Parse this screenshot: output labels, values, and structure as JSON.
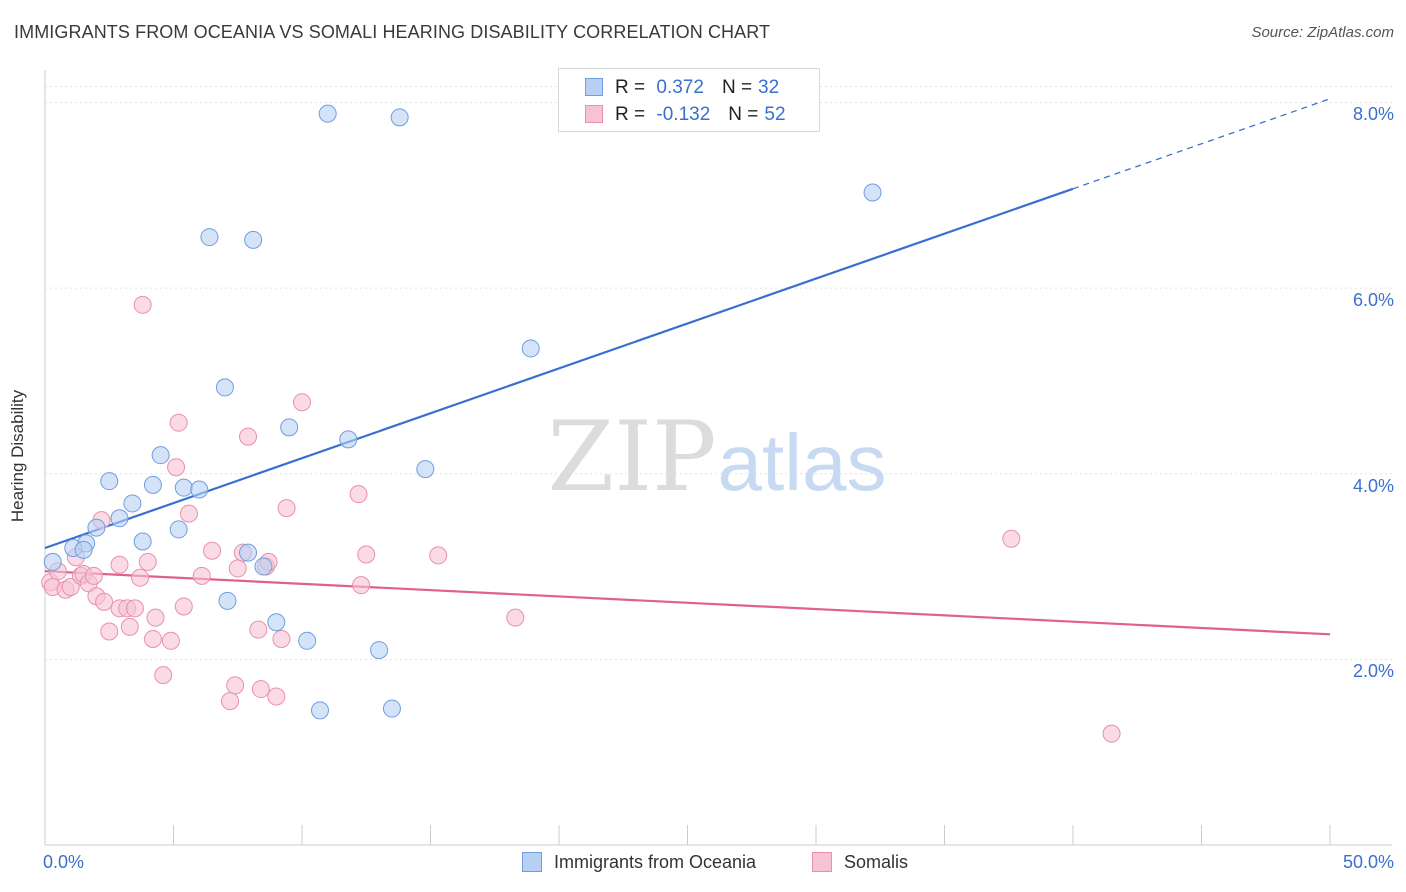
{
  "title": "IMMIGRANTS FROM OCEANIA VS SOMALI HEARING DISABILITY CORRELATION CHART",
  "source": "Source: ZipAtlas.com",
  "watermark": {
    "zip": "ZIP",
    "atlas": "atlas"
  },
  "legend": {
    "r_label": "R =",
    "n_label": "N =",
    "rows": [
      {
        "r": "0.372",
        "n": "32",
        "fill": "#b8d0f3",
        "stroke": "#6f9ee0"
      },
      {
        "r": "-0.132",
        "n": "52",
        "fill": "#f7c3d3",
        "stroke": "#e890ad"
      }
    ]
  },
  "bottom_legend": [
    "Immigrants from Oceania",
    "Somalis"
  ],
  "colors": {
    "blue": "#3a6fd0",
    "pink": "#e06090",
    "blue_fill": "#b8d0f3",
    "pink_fill": "#f7c3d3"
  },
  "chart_data": {
    "type": "scatter",
    "title": "IMMIGRANTS FROM OCEANIA VS SOMALI HEARING DISABILITY CORRELATION CHART",
    "xlabel": "",
    "ylabel": "Hearing Disability",
    "xlim": [
      0,
      50
    ],
    "ylim": [
      0,
      8.35
    ],
    "x_tick_labels": [
      "0.0%",
      "50.0%"
    ],
    "y_ticks": [
      2,
      4,
      6,
      8
    ],
    "y_tick_labels": [
      "2.0%",
      "4.0%",
      "6.0%",
      "8.0%"
    ],
    "grid": true,
    "legend_position": "top-center",
    "series": [
      {
        "name": "Immigrants from Oceania",
        "color": "#3a6fd0",
        "trend": {
          "x0": 0,
          "y0": 3.2,
          "x1": 40,
          "y1": 7.07,
          "dash_to_x": 50,
          "dash_to_y": 8.04
        },
        "points": [
          [
            0.3,
            3.05
          ],
          [
            1.6,
            3.25
          ],
          [
            1.1,
            3.2
          ],
          [
            1.5,
            3.18
          ],
          [
            2.0,
            3.42
          ],
          [
            2.5,
            3.92
          ],
          [
            2.9,
            3.52
          ],
          [
            3.4,
            3.68
          ],
          [
            3.8,
            3.27
          ],
          [
            4.2,
            3.88
          ],
          [
            4.5,
            4.2
          ],
          [
            5.2,
            3.4
          ],
          [
            5.4,
            3.85
          ],
          [
            6.0,
            3.83
          ],
          [
            6.4,
            6.55
          ],
          [
            7.0,
            4.93
          ],
          [
            7.1,
            2.63
          ],
          [
            8.1,
            6.52
          ],
          [
            7.9,
            3.15
          ],
          [
            8.5,
            3.0
          ],
          [
            9.0,
            2.4
          ],
          [
            9.5,
            4.5
          ],
          [
            10.2,
            2.2
          ],
          [
            10.7,
            1.45
          ],
          [
            11.0,
            7.88
          ],
          [
            11.8,
            4.37
          ],
          [
            13.0,
            2.1
          ],
          [
            13.5,
            1.47
          ],
          [
            13.8,
            7.84
          ],
          [
            14.8,
            4.05
          ],
          [
            18.9,
            5.35
          ],
          [
            32.2,
            7.03
          ]
        ]
      },
      {
        "name": "Somalis",
        "color": "#e06090",
        "trend": {
          "x0": 0,
          "y0": 2.95,
          "x1": 50,
          "y1": 2.27
        },
        "points": [
          [
            0.2,
            2.83
          ],
          [
            0.3,
            2.78
          ],
          [
            0.5,
            2.95
          ],
          [
            0.8,
            2.75
          ],
          [
            1.0,
            2.78
          ],
          [
            1.2,
            3.1
          ],
          [
            1.4,
            2.9
          ],
          [
            1.5,
            2.92
          ],
          [
            1.7,
            2.82
          ],
          [
            1.9,
            2.9
          ],
          [
            2.0,
            2.68
          ],
          [
            2.2,
            3.5
          ],
          [
            2.3,
            2.62
          ],
          [
            2.5,
            2.3
          ],
          [
            2.9,
            2.55
          ],
          [
            2.9,
            3.02
          ],
          [
            3.2,
            2.55
          ],
          [
            3.3,
            2.35
          ],
          [
            3.5,
            2.55
          ],
          [
            3.7,
            2.88
          ],
          [
            3.8,
            5.82
          ],
          [
            4.0,
            3.05
          ],
          [
            4.2,
            2.22
          ],
          [
            4.3,
            2.45
          ],
          [
            4.6,
            1.83
          ],
          [
            4.9,
            2.2
          ],
          [
            5.1,
            4.07
          ],
          [
            5.2,
            4.55
          ],
          [
            5.4,
            2.57
          ],
          [
            5.6,
            3.57
          ],
          [
            6.1,
            2.9
          ],
          [
            6.5,
            3.17
          ],
          [
            7.2,
            1.55
          ],
          [
            7.4,
            1.72
          ],
          [
            7.5,
            2.98
          ],
          [
            7.7,
            3.15
          ],
          [
            7.9,
            4.4
          ],
          [
            8.3,
            2.32
          ],
          [
            8.4,
            1.68
          ],
          [
            8.6,
            3.0
          ],
          [
            8.7,
            3.05
          ],
          [
            9.0,
            1.6
          ],
          [
            9.2,
            2.22
          ],
          [
            9.4,
            3.63
          ],
          [
            10.0,
            4.77
          ],
          [
            12.2,
            3.78
          ],
          [
            12.3,
            2.8
          ],
          [
            12.5,
            3.13
          ],
          [
            15.3,
            3.12
          ],
          [
            18.3,
            2.45
          ],
          [
            37.6,
            3.3
          ],
          [
            41.5,
            1.2
          ]
        ]
      }
    ]
  }
}
